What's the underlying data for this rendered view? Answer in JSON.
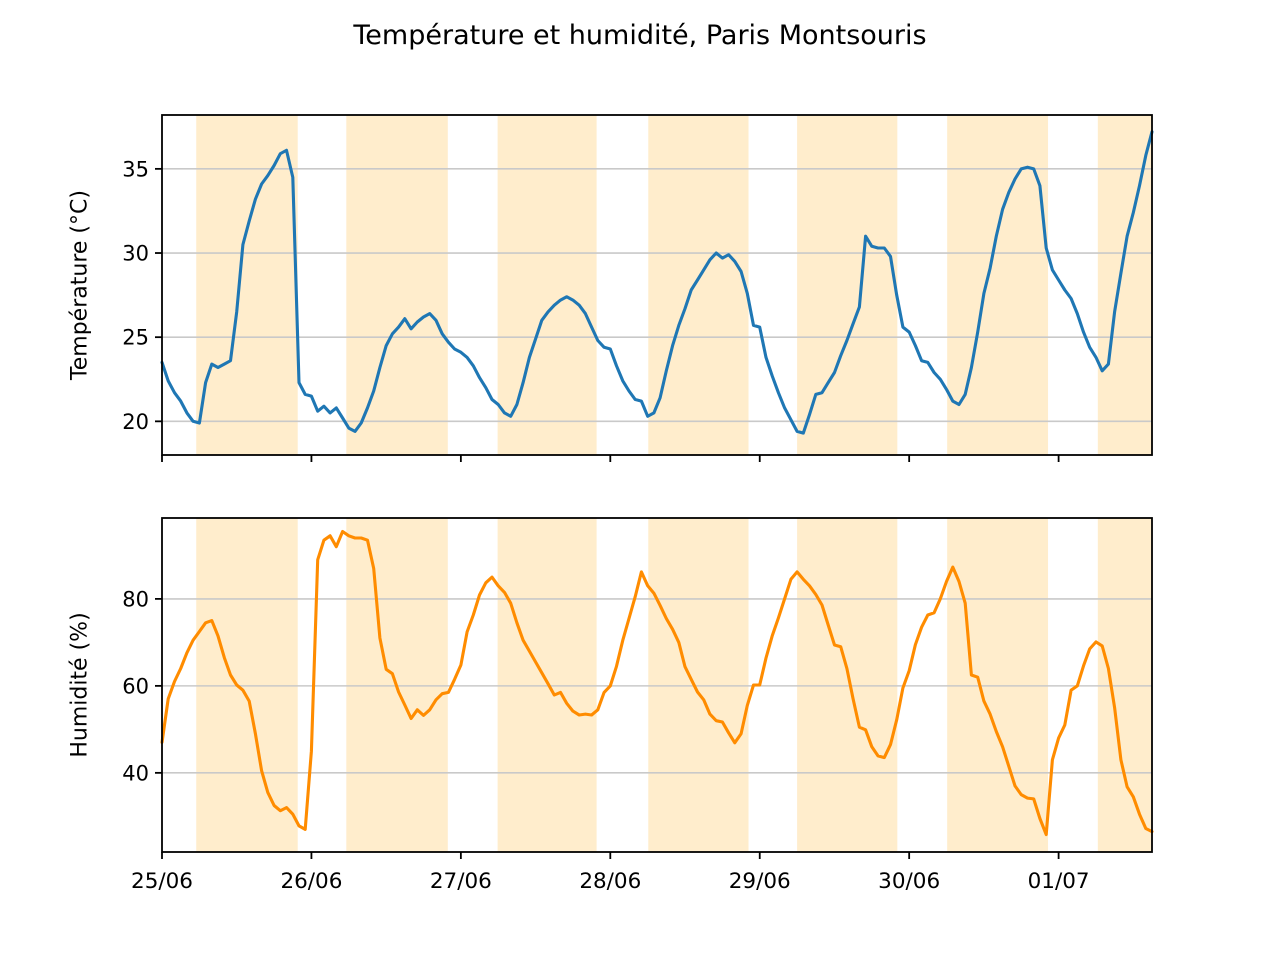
{
  "chart_data": {
    "type": "line",
    "title": "Température et humidité, Paris Montsouris",
    "x_axis": {
      "unit": "hours since 25/06 00:00",
      "start_hour": 0,
      "step_hours": 1,
      "range_hours": [
        0,
        159
      ],
      "tick_hours": [
        0,
        24,
        48,
        72,
        96,
        120,
        144
      ],
      "tick_labels": [
        "25/06",
        "26/06",
        "27/06",
        "28/06",
        "29/06",
        "30/06",
        "01/07"
      ]
    },
    "daytime_bands_hours": [
      [
        5.5,
        21.8
      ],
      [
        29.6,
        45.9
      ],
      [
        53.9,
        69.8
      ],
      [
        78.1,
        94.2
      ],
      [
        102.0,
        118.1
      ],
      [
        126.1,
        142.3
      ],
      [
        150.3,
        159.0
      ]
    ],
    "band_color": "rgba(255,166,0,0.2)",
    "grid": "horizontal",
    "grid_color": "#c9c9c9",
    "legend": "none",
    "plots": [
      {
        "name": "temperature",
        "ylabel": "Température (°C)",
        "yticks": [
          20,
          25,
          30,
          35
        ],
        "ylim": [
          18.0,
          38.2
        ],
        "color": "#1f77b4",
        "values": [
          23.5,
          22.4,
          21.7,
          21.2,
          20.5,
          20.0,
          19.9,
          22.3,
          23.4,
          23.2,
          23.4,
          23.6,
          26.5,
          30.5,
          31.9,
          33.2,
          34.1,
          34.6,
          35.2,
          35.9,
          36.1,
          34.5,
          22.3,
          21.6,
          21.5,
          20.6,
          20.9,
          20.5,
          20.8,
          20.2,
          19.6,
          19.4,
          19.9,
          20.8,
          21.8,
          23.2,
          24.5,
          25.2,
          25.6,
          26.1,
          25.5,
          25.9,
          26.2,
          26.4,
          26.0,
          25.2,
          24.7,
          24.3,
          24.1,
          23.8,
          23.3,
          22.6,
          22.0,
          21.3,
          21.0,
          20.5,
          20.3,
          21.0,
          22.3,
          23.8,
          24.9,
          26.0,
          26.5,
          26.9,
          27.2,
          27.4,
          27.2,
          26.9,
          26.4,
          25.6,
          24.8,
          24.4,
          24.3,
          23.3,
          22.4,
          21.8,
          21.3,
          21.2,
          20.3,
          20.5,
          21.4,
          23.0,
          24.5,
          25.7,
          26.7,
          27.8,
          28.4,
          29.0,
          29.6,
          30.0,
          29.7,
          29.9,
          29.5,
          28.9,
          27.6,
          25.7,
          25.6,
          23.8,
          22.7,
          21.7,
          20.8,
          20.1,
          19.4,
          19.3,
          20.4,
          21.6,
          21.7,
          22.3,
          22.9,
          23.9,
          24.8,
          25.8,
          26.8,
          31.0,
          30.4,
          30.3,
          30.3,
          29.8,
          27.5,
          25.6,
          25.3,
          24.5,
          23.6,
          23.5,
          22.9,
          22.5,
          21.9,
          21.2,
          21.0,
          21.6,
          23.2,
          25.3,
          27.6,
          29.1,
          31.0,
          32.6,
          33.6,
          34.4,
          35.0,
          35.1,
          35.0,
          34.0,
          30.3,
          29.0,
          28.4,
          27.8,
          27.3,
          26.4,
          25.3,
          24.4,
          23.8,
          23.0,
          23.4,
          26.5,
          28.8,
          31.0,
          32.4,
          34.0,
          35.8,
          37.2
        ]
      },
      {
        "name": "humidity",
        "ylabel": "Humidité (%)",
        "yticks": [
          40,
          60,
          80
        ],
        "ylim": [
          21.8,
          98.6
        ],
        "color": "#ff8c00",
        "values": [
          47.0,
          57.0,
          61.0,
          64.0,
          67.6,
          70.5,
          72.5,
          74.5,
          75.0,
          71.5,
          66.5,
          62.5,
          60.2,
          59.0,
          56.5,
          49.0,
          40.5,
          35.5,
          32.5,
          31.3,
          32.0,
          30.5,
          27.8,
          27.0,
          45.0,
          89.0,
          93.5,
          94.5,
          92.0,
          95.5,
          94.5,
          94.0,
          94.0,
          93.5,
          87.0,
          71.0,
          63.8,
          62.8,
          58.6,
          55.6,
          52.5,
          54.5,
          53.2,
          54.5,
          56.8,
          58.2,
          58.5,
          61.5,
          64.8,
          72.4,
          76.3,
          80.9,
          83.7,
          85.0,
          83.0,
          81.5,
          79.0,
          74.5,
          70.5,
          68.0,
          65.5,
          63.0,
          60.5,
          57.9,
          58.5,
          56.0,
          54.2,
          53.3,
          53.5,
          53.3,
          54.5,
          58.5,
          60.0,
          64.5,
          70.5,
          75.5,
          80.5,
          86.2,
          83.0,
          81.3,
          78.5,
          75.5,
          73.0,
          70.0,
          64.4,
          61.5,
          58.6,
          56.8,
          53.5,
          52.0,
          51.7,
          49.2,
          46.9,
          49.0,
          55.5,
          60.2,
          60.2,
          66.4,
          71.5,
          75.6,
          80.0,
          84.5,
          86.2,
          84.5,
          83.0,
          81.0,
          78.6,
          74.0,
          69.4,
          69.0,
          64.0,
          57.0,
          50.5,
          49.9,
          46.0,
          43.9,
          43.5,
          46.5,
          52.2,
          59.5,
          63.5,
          69.5,
          73.5,
          76.3,
          76.8,
          80.0,
          84.0,
          87.3,
          84.0,
          79.0,
          62.5,
          62.0,
          56.5,
          53.5,
          49.5,
          46.0,
          41.5,
          37.0,
          35.0,
          34.2,
          34.0,
          29.5,
          25.8,
          43.0,
          48.0,
          51.0,
          59.0,
          60.0,
          64.6,
          68.5,
          70.1,
          69.2,
          64.0,
          55.0,
          43.0,
          36.8,
          34.5,
          30.5,
          27.2,
          26.5
        ]
      }
    ]
  }
}
